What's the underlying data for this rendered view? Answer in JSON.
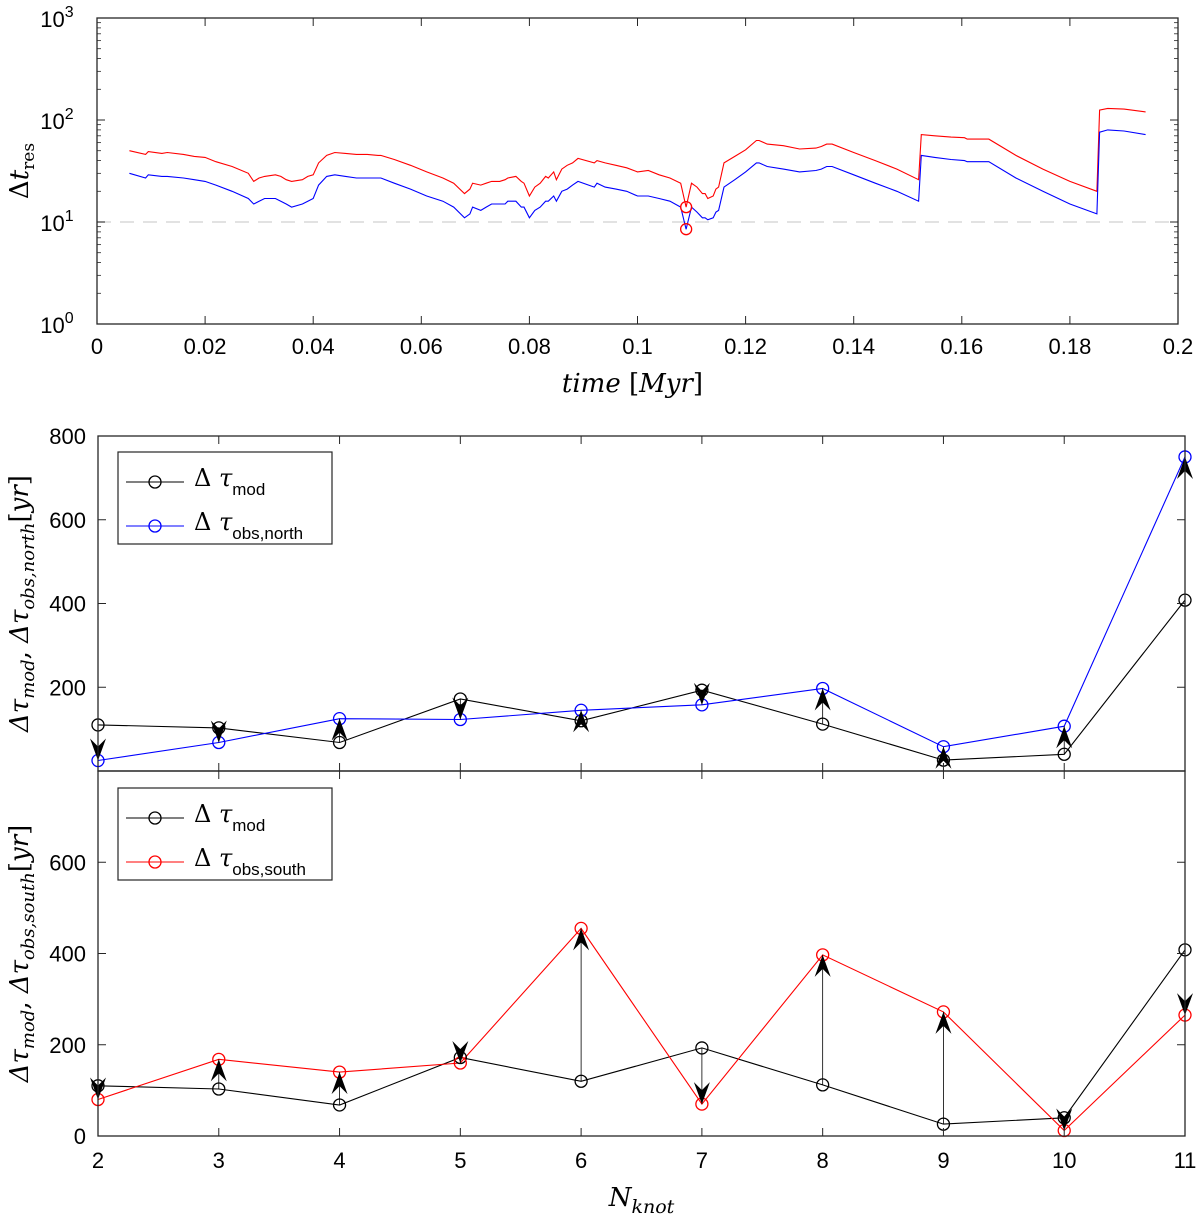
{
  "figure": {
    "caption_hidden": false
  },
  "chart_data": [
    {
      "type": "line",
      "panel": "top",
      "title": "",
      "xlabel_parts": {
        "var": "time",
        "unit": "Myr"
      },
      "ylabel_parts": {
        "sym": "Δ",
        "var": "t",
        "sub": "res"
      },
      "yscale": "log",
      "xlim": [
        0,
        0.2
      ],
      "ylim": [
        1,
        1000
      ],
      "xticks": [
        0,
        0.02,
        0.04,
        0.06,
        0.08,
        0.1,
        0.12,
        0.14,
        0.16,
        0.18,
        0.2
      ],
      "xtick_labels": [
        "0",
        "0.02",
        "0.04",
        "0.06",
        "0.08",
        "0.1",
        "0.12",
        "0.14",
        "0.16",
        "0.18",
        "0.2"
      ],
      "yticks": [
        1,
        10,
        100,
        1000
      ],
      "ytick_labels": [
        {
          "base": "10",
          "exp": "0"
        },
        {
          "base": "10",
          "exp": "1"
        },
        {
          "base": "10",
          "exp": "2"
        },
        {
          "base": "10",
          "exp": "3"
        }
      ],
      "reference_line": {
        "y": 10,
        "style": "dashed",
        "color": "#d9d9d9"
      },
      "series": [
        {
          "name": "red",
          "color": "#ff0000",
          "x": [
            0.006,
            0.009,
            0.0095,
            0.012,
            0.013,
            0.016,
            0.018,
            0.02,
            0.022,
            0.025,
            0.028,
            0.029,
            0.03,
            0.031,
            0.033,
            0.034,
            0.035,
            0.036,
            0.038,
            0.039,
            0.04,
            0.041,
            0.0425,
            0.044,
            0.046,
            0.048,
            0.05,
            0.052,
            0.0525,
            0.055,
            0.058,
            0.061,
            0.064,
            0.066,
            0.068,
            0.069,
            0.0695,
            0.071,
            0.072,
            0.073,
            0.0745,
            0.0755,
            0.076,
            0.0775,
            0.0785,
            0.079,
            0.08,
            0.081,
            0.082,
            0.083,
            0.0835,
            0.0845,
            0.085,
            0.086,
            0.087,
            0.088,
            0.089,
            0.092,
            0.0925,
            0.094,
            0.096,
            0.098,
            0.1,
            0.102,
            0.104,
            0.106,
            0.108,
            0.109,
            0.11,
            0.111,
            0.112,
            0.1125,
            0.113,
            0.114,
            0.1145,
            0.115,
            0.116,
            0.118,
            0.12,
            0.122,
            0.1225,
            0.124,
            0.127,
            0.13,
            0.133,
            0.134,
            0.135,
            0.136,
            0.14,
            0.144,
            0.148,
            0.152,
            0.1525,
            0.155,
            0.158,
            0.1605,
            0.161,
            0.165,
            0.17,
            0.175,
            0.18,
            0.185,
            0.1855,
            0.187,
            0.19,
            0.194
          ],
          "y": [
            50,
            46,
            49,
            47,
            48,
            46,
            44,
            43,
            39,
            35,
            30,
            25,
            27,
            28,
            29,
            28,
            26,
            25,
            26,
            28,
            29,
            38,
            45,
            48,
            47,
            46,
            46,
            45,
            45,
            41,
            36,
            31,
            27,
            24,
            19,
            21,
            24,
            23,
            24,
            25,
            25,
            26,
            27,
            28,
            25,
            24,
            18,
            22,
            24,
            28,
            27,
            31,
            26,
            33,
            36,
            38,
            42,
            38,
            40,
            38,
            36,
            34,
            31,
            32,
            29,
            27,
            24,
            14,
            24,
            22,
            19,
            19,
            17,
            18,
            21,
            22,
            38,
            44,
            51,
            63,
            63,
            58,
            56,
            52,
            53,
            55,
            58,
            58,
            48,
            40,
            33,
            26,
            72,
            70,
            68,
            67,
            65,
            65,
            45,
            33,
            25,
            20,
            125,
            130,
            128,
            120
          ]
        },
        {
          "name": "blue",
          "color": "#0000ff",
          "x": [
            0.006,
            0.009,
            0.0095,
            0.012,
            0.013,
            0.016,
            0.018,
            0.02,
            0.022,
            0.025,
            0.028,
            0.029,
            0.03,
            0.031,
            0.033,
            0.034,
            0.035,
            0.036,
            0.038,
            0.039,
            0.04,
            0.041,
            0.0425,
            0.044,
            0.046,
            0.048,
            0.05,
            0.052,
            0.0525,
            0.055,
            0.058,
            0.061,
            0.064,
            0.066,
            0.068,
            0.069,
            0.0695,
            0.071,
            0.072,
            0.073,
            0.0745,
            0.0755,
            0.076,
            0.0775,
            0.0785,
            0.079,
            0.08,
            0.081,
            0.082,
            0.083,
            0.0835,
            0.0845,
            0.085,
            0.086,
            0.087,
            0.088,
            0.089,
            0.092,
            0.0925,
            0.094,
            0.096,
            0.098,
            0.1,
            0.102,
            0.104,
            0.106,
            0.108,
            0.109,
            0.11,
            0.111,
            0.112,
            0.1125,
            0.113,
            0.114,
            0.1145,
            0.115,
            0.116,
            0.118,
            0.12,
            0.122,
            0.1225,
            0.124,
            0.127,
            0.13,
            0.133,
            0.134,
            0.135,
            0.136,
            0.14,
            0.144,
            0.148,
            0.152,
            0.1525,
            0.155,
            0.158,
            0.1605,
            0.161,
            0.165,
            0.17,
            0.175,
            0.18,
            0.185,
            0.1855,
            0.187,
            0.19,
            0.194
          ],
          "y": [
            30,
            27,
            29,
            28,
            28,
            27,
            26,
            25,
            23,
            20,
            17,
            15,
            16,
            17,
            17,
            16,
            15,
            14,
            15,
            16,
            17,
            23,
            28,
            29,
            28,
            27,
            27,
            27,
            27,
            24,
            21,
            18,
            16,
            14,
            11,
            12,
            14,
            13,
            14,
            15,
            15,
            15,
            16,
            16,
            14,
            14,
            11,
            13,
            14,
            16,
            16,
            18,
            16,
            20,
            21,
            23,
            25,
            22,
            24,
            22,
            21,
            20,
            18,
            18,
            17,
            16,
            14,
            8.5,
            14,
            12.5,
            11,
            11,
            10.5,
            11,
            12.5,
            13,
            22,
            26,
            31,
            38,
            38,
            35,
            33,
            31,
            32,
            33,
            35,
            35,
            29,
            24,
            20,
            16,
            45,
            43,
            41,
            40,
            39,
            39,
            27,
            20,
            15,
            12,
            76,
            80,
            78,
            72
          ]
        }
      ],
      "markers": [
        {
          "x": 0.109,
          "y": 14,
          "color": "#ff0000"
        },
        {
          "x": 0.109,
          "y": 8.5,
          "color": "#ff0000"
        }
      ]
    },
    {
      "type": "line",
      "panel": "middle",
      "xlabel": "",
      "ylabel_parts": {
        "a": "Δτ",
        "asub": "mod",
        "b": "Δτ",
        "bsub": "obs,north",
        "unit": "yr"
      },
      "xlim": [
        2,
        11
      ],
      "ylim": [
        0,
        800
      ],
      "yticks": [
        200,
        400,
        600,
        800
      ],
      "ytick_labels": [
        "200",
        "400",
        "600",
        "800"
      ],
      "legend": {
        "placement": "top-left",
        "entries": [
          {
            "sym": "Δ",
            "tau": "τ",
            "sub": "mod",
            "color": "#000000"
          },
          {
            "sym": "Δ",
            "tau": "τ",
            "sub": "obs,north",
            "color": "#0000ff"
          }
        ]
      },
      "x": [
        2,
        3,
        4,
        5,
        6,
        7,
        8,
        9,
        10,
        11
      ],
      "series": [
        {
          "name": "mod",
          "color": "#000000",
          "values": [
            110,
            103,
            68,
            172,
            120,
            193,
            112,
            26,
            40,
            408
          ]
        },
        {
          "name": "obs,north",
          "color": "#0000ff",
          "values": [
            25,
            68,
            125,
            123,
            145,
            158,
            197,
            58,
            107,
            750
          ]
        }
      ],
      "arrows": "from mod to obs"
    },
    {
      "type": "line",
      "panel": "bottom",
      "xlabel_parts": {
        "var": "N",
        "sub": "knot"
      },
      "ylabel_parts": {
        "a": "Δτ",
        "asub": "mod",
        "b": "Δτ",
        "bsub": "obs,south",
        "unit": "yr"
      },
      "xlim": [
        2,
        11
      ],
      "ylim": [
        0,
        800
      ],
      "xticks": [
        2,
        3,
        4,
        5,
        6,
        7,
        8,
        9,
        10,
        11
      ],
      "xtick_labels": [
        "2",
        "3",
        "4",
        "5",
        "6",
        "7",
        "8",
        "9",
        "10",
        "11"
      ],
      "yticks": [
        0,
        200,
        400,
        600
      ],
      "ytick_labels": [
        "0",
        "200",
        "400",
        "600"
      ],
      "legend": {
        "placement": "top-left",
        "entries": [
          {
            "sym": "Δ",
            "tau": "τ",
            "sub": "mod",
            "color": "#000000"
          },
          {
            "sym": "Δ",
            "tau": "τ",
            "sub": "obs,south",
            "color": "#ff0000"
          }
        ]
      },
      "x": [
        2,
        3,
        4,
        5,
        6,
        7,
        8,
        9,
        10,
        11
      ],
      "series": [
        {
          "name": "mod",
          "color": "#000000",
          "values": [
            110,
            103,
            68,
            172,
            120,
            193,
            112,
            26,
            40,
            408
          ]
        },
        {
          "name": "obs,south",
          "color": "#ff0000",
          "values": [
            80,
            168,
            140,
            160,
            455,
            70,
            397,
            272,
            12,
            265
          ]
        }
      ],
      "arrows": "from mod to obs"
    }
  ]
}
